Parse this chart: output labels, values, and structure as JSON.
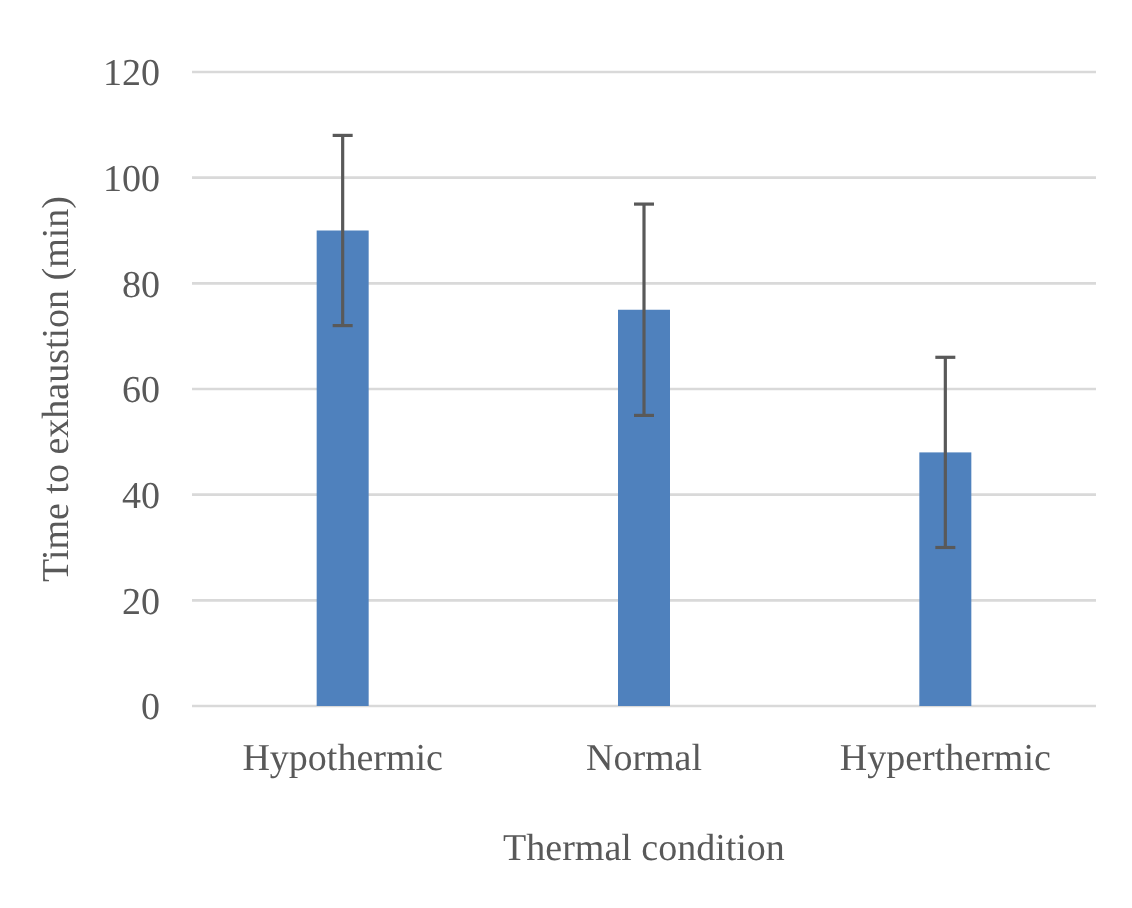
{
  "chart_data": {
    "type": "bar",
    "xlabel": "Thermal condition",
    "ylabel": "Time to exhaustion (min)",
    "categories": [
      "Hypothermic",
      "Normal",
      "Hyperthermic"
    ],
    "values": [
      90,
      75,
      48
    ],
    "errors": [
      [
        72,
        108
      ],
      [
        55,
        95
      ],
      [
        30,
        66
      ]
    ],
    "color": "#4f81bd",
    "ylim": [
      0,
      120
    ],
    "yticks": [
      0,
      20,
      40,
      60,
      80,
      100,
      120
    ],
    "grid": "y"
  }
}
